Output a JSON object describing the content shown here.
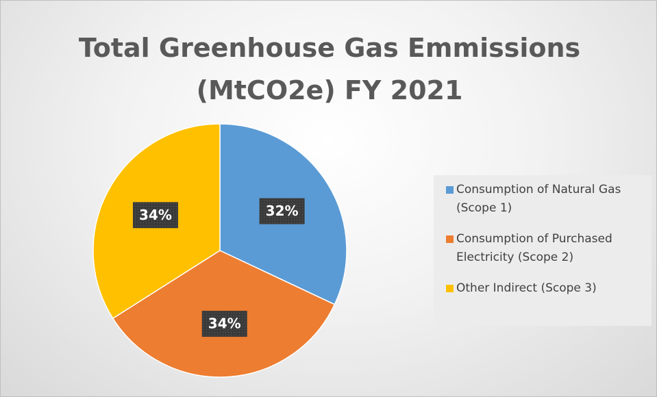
{
  "chart_data": {
    "type": "pie",
    "title": "Total Greenhouse Gas Emmissions (MtCO2e)  FY 2021",
    "categories": [
      "Consumption of Natural Gas (Scope 1)",
      "Consumption of Purchased Electricity (Scope 2)",
      "Other Indirect (Scope 3)"
    ],
    "values": [
      32,
      34,
      34
    ],
    "value_labels": [
      "32%",
      "34%",
      "34%"
    ],
    "colors": [
      "#5b9bd5",
      "#ed7d31",
      "#ffc000"
    ],
    "legend": "right"
  }
}
